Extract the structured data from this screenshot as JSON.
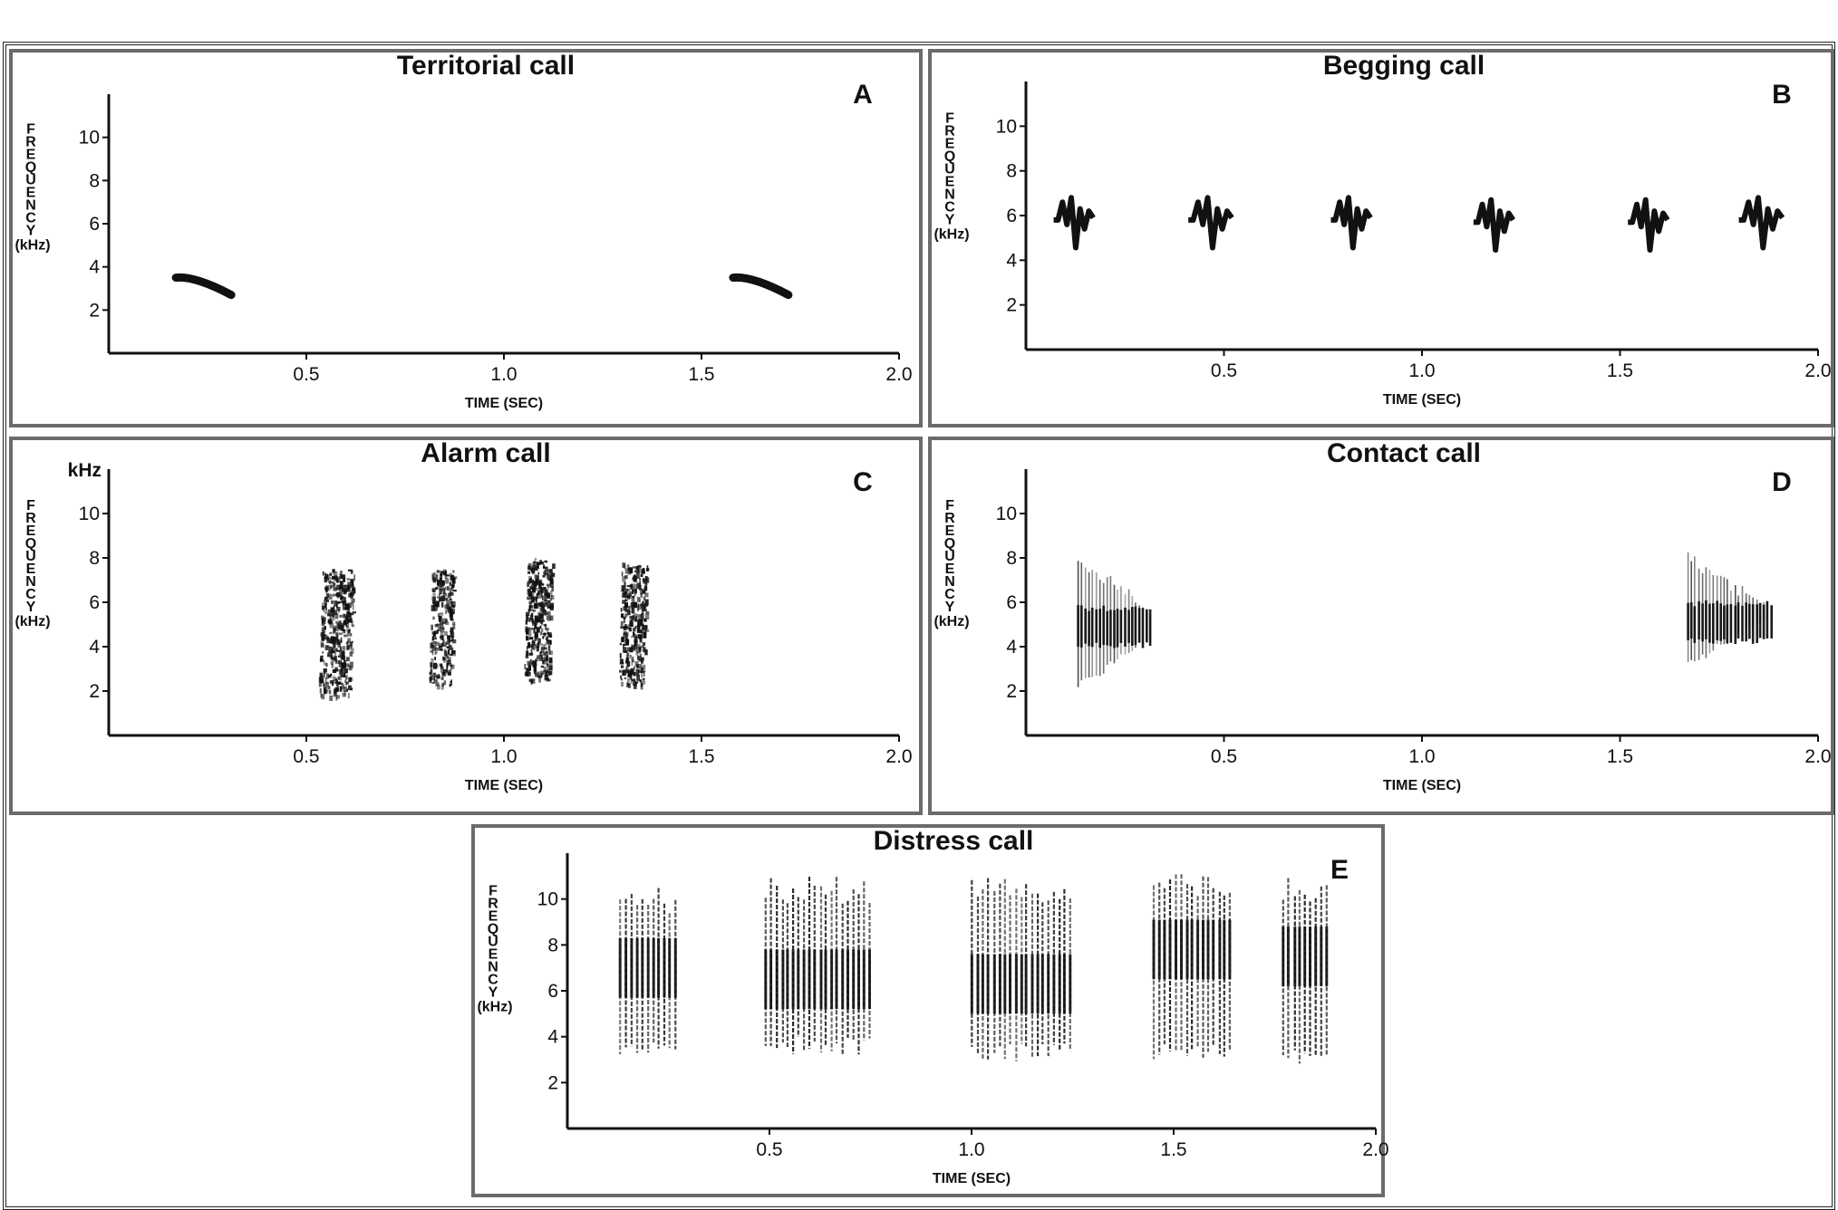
{
  "colors": {
    "ink": "#111111",
    "frame": "#6b6b6b",
    "background": "#ffffff"
  },
  "chart_data": [
    {
      "id": "A",
      "type": "spectrogram",
      "title": "Territorial call",
      "panel_letter": "A",
      "xlabel": "TIME (SEC)",
      "ylabel_letters": [
        "F",
        "R",
        "E",
        "Q",
        "U",
        "E",
        "N",
        "C",
        "Y"
      ],
      "ylabel_unit": "(kHz)",
      "xticks": [
        "0.5",
        "1.0",
        "1.5",
        "2.0"
      ],
      "yticks": [
        "2",
        "4",
        "6",
        "8",
        "10"
      ],
      "xlim": [
        0,
        2.0
      ],
      "ylim": [
        0,
        12
      ],
      "segments": [
        {
          "kind": "sweep",
          "t_start": 0.17,
          "t_end": 0.31,
          "f_start": 3.5,
          "f_end": 2.7
        },
        {
          "kind": "sweep",
          "t_start": 1.58,
          "t_end": 1.72,
          "f_start": 3.5,
          "f_end": 2.7
        }
      ]
    },
    {
      "id": "B",
      "type": "spectrogram",
      "title": "Begging call",
      "panel_letter": "B",
      "xlabel": "TIME (SEC)",
      "ylabel_letters": [
        "F",
        "R",
        "E",
        "Q",
        "U",
        "E",
        "N",
        "C",
        "Y"
      ],
      "ylabel_unit": "(kHz)",
      "xticks": [
        "0.5",
        "1.0",
        "1.5",
        "2.0"
      ],
      "yticks": [
        "2",
        "4",
        "6",
        "8",
        "10"
      ],
      "xlim": [
        0,
        2.0
      ],
      "ylim": [
        0,
        12
      ],
      "segments": [
        {
          "kind": "squiggle",
          "t_start": 0.07,
          "t_end": 0.17,
          "f_center": 6.0
        },
        {
          "kind": "squiggle",
          "t_start": 0.41,
          "t_end": 0.52,
          "f_center": 6.0
        },
        {
          "kind": "squiggle",
          "t_start": 0.77,
          "t_end": 0.87,
          "f_center": 6.0
        },
        {
          "kind": "squiggle",
          "t_start": 1.13,
          "t_end": 1.23,
          "f_center": 5.9
        },
        {
          "kind": "squiggle",
          "t_start": 1.52,
          "t_end": 1.62,
          "f_center": 5.9
        },
        {
          "kind": "squiggle",
          "t_start": 1.8,
          "t_end": 1.91,
          "f_center": 6.0
        }
      ]
    },
    {
      "id": "C",
      "type": "spectrogram",
      "title": "Alarm call",
      "panel_letter": "C",
      "xlabel": "TIME (SEC)",
      "ylabel_letters": [
        "F",
        "R",
        "E",
        "Q",
        "U",
        "E",
        "N",
        "C",
        "Y"
      ],
      "ylabel_unit": "(kHz)",
      "ylabel_top": "kHz",
      "xticks": [
        "0.5",
        "1.0",
        "1.5",
        "2.0"
      ],
      "yticks": [
        "2",
        "4",
        "6",
        "8",
        "10"
      ],
      "xlim": [
        0,
        2.0
      ],
      "ylim": [
        0,
        12
      ],
      "segments": [
        {
          "kind": "noise",
          "t_start": 0.53,
          "t_end": 0.63,
          "f_low": 1.8,
          "f_high": 7.5,
          "density": 0.55
        },
        {
          "kind": "noise",
          "t_start": 0.81,
          "t_end": 0.88,
          "f_low": 2.2,
          "f_high": 7.5,
          "density": 0.55
        },
        {
          "kind": "noise",
          "t_start": 1.05,
          "t_end": 1.13,
          "f_low": 2.5,
          "f_high": 8.0,
          "density": 0.65
        },
        {
          "kind": "noise",
          "t_start": 1.29,
          "t_end": 1.37,
          "f_low": 2.3,
          "f_high": 7.8,
          "density": 0.6
        }
      ]
    },
    {
      "id": "D",
      "type": "spectrogram",
      "title": "Contact call",
      "panel_letter": "D",
      "xlabel": "TIME (SEC)",
      "ylabel_letters": [
        "F",
        "R",
        "E",
        "Q",
        "U",
        "E",
        "N",
        "C",
        "Y"
      ],
      "ylabel_unit": "(kHz)",
      "xticks": [
        "0.5",
        "1.0",
        "1.5",
        "2.0"
      ],
      "yticks": [
        "2",
        "4",
        "6",
        "8",
        "10"
      ],
      "xlim": [
        0,
        2.0
      ],
      "ylim": [
        0,
        12
      ],
      "segments": [
        {
          "kind": "harmonic",
          "t_start": 0.13,
          "t_end": 0.32,
          "f_low": 2.0,
          "f_high": 8.3,
          "f_core": 4.8
        },
        {
          "kind": "harmonic",
          "t_start": 1.67,
          "t_end": 1.89,
          "f_low": 3.0,
          "f_high": 8.3,
          "f_core": 5.0
        }
      ]
    },
    {
      "id": "E",
      "type": "spectrogram",
      "title": "Distress call",
      "panel_letter": "E",
      "xlabel": "TIME (SEC)",
      "ylabel_letters": [
        "F",
        "R",
        "E",
        "Q",
        "U",
        "E",
        "N",
        "C",
        "Y"
      ],
      "ylabel_unit": "(kHz)",
      "xticks": [
        "0.5",
        "1.0",
        "1.5",
        "2.0"
      ],
      "yticks": [
        "2",
        "4",
        "6",
        "8",
        "10"
      ],
      "xlim": [
        0,
        2.0
      ],
      "ylim": [
        0,
        12
      ],
      "segments": [
        {
          "kind": "bars",
          "t_start": 0.13,
          "t_end": 0.27,
          "f_low": 3.1,
          "f_high": 10.5,
          "f_dense": 7.0
        },
        {
          "kind": "bars",
          "t_start": 0.49,
          "t_end": 0.75,
          "f_low": 3.2,
          "f_high": 11.0,
          "f_dense": 6.5
        },
        {
          "kind": "bars",
          "t_start": 1.0,
          "t_end": 1.24,
          "f_low": 2.9,
          "f_high": 11.0,
          "f_dense": 6.3
        },
        {
          "kind": "bars",
          "t_start": 1.45,
          "t_end": 1.64,
          "f_low": 2.9,
          "f_high": 11.2,
          "f_dense": 7.8
        },
        {
          "kind": "bars",
          "t_start": 1.77,
          "t_end": 1.88,
          "f_low": 2.8,
          "f_high": 11.0,
          "f_dense": 7.5
        }
      ]
    }
  ]
}
